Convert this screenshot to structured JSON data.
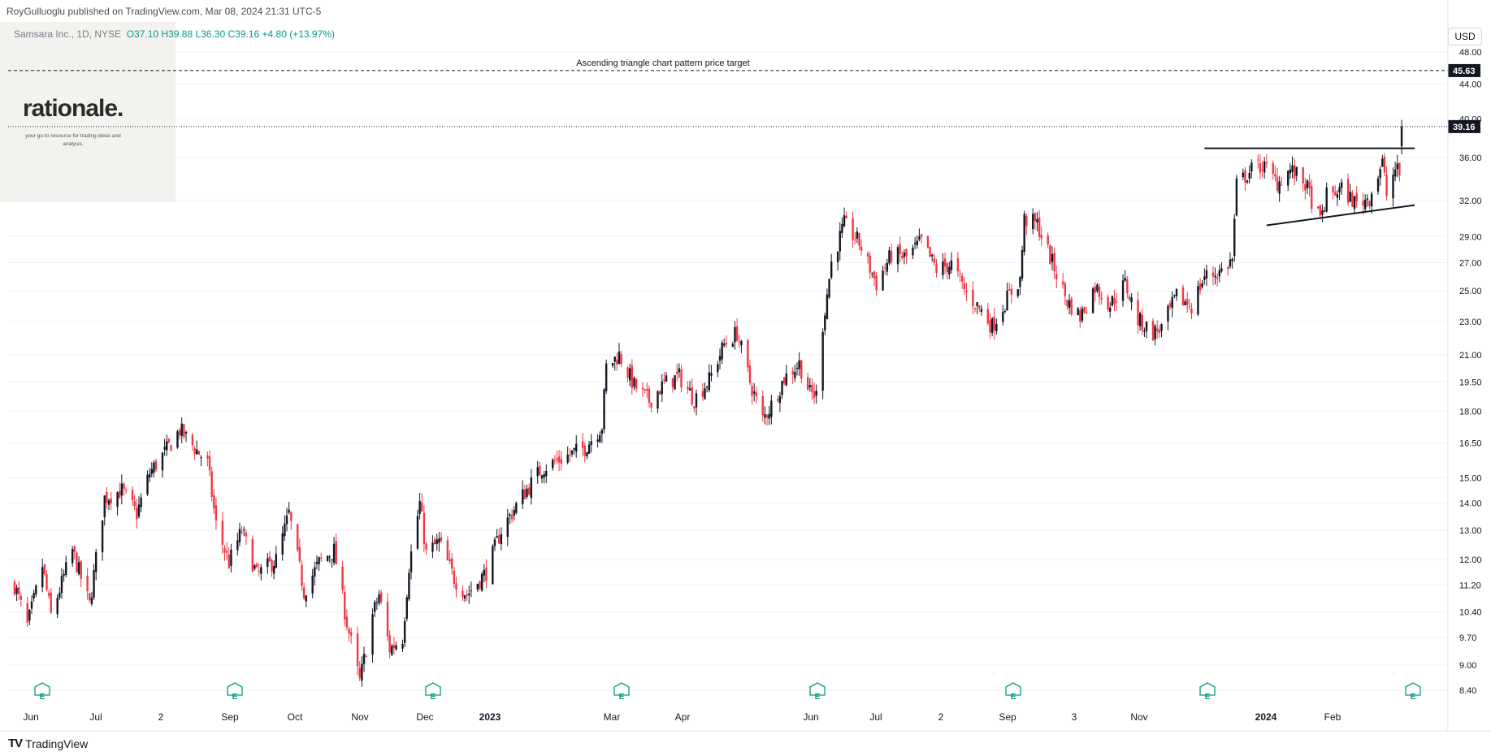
{
  "header": {
    "publisher": "RoyGulluoglu published on TradingView.com, Mar 08, 2024 21:31 UTC-5",
    "symbol": "Samsara Inc., 1D, NYSE",
    "ohlc": "O37.10 H39.88 L36.30 C39.16 +4.80 (+13.97%)"
  },
  "branding": {
    "logo": "rationale.",
    "tagline": "your go-to resource for trading ideas and analysis."
  },
  "price_scale": {
    "currency": "USD"
  },
  "footer": {
    "brand": "TradingView",
    "logo_mark": "TV"
  },
  "colors": {
    "up": "#131722",
    "down": "#f23645",
    "target_label": "#131722",
    "grid": "#f0f3fa"
  },
  "chart_data": {
    "type": "candlestick",
    "symbol": "Samsara Inc., 1D, NYSE",
    "y_scale": "log",
    "y_ticks": [
      8.4,
      9.0,
      9.7,
      10.4,
      11.2,
      12.0,
      13.0,
      14.0,
      15.0,
      16.5,
      18.0,
      19.5,
      21.0,
      23.0,
      25.0,
      27.0,
      29.0,
      32.0,
      36.0,
      40.0,
      44.0,
      48.0
    ],
    "y_tick_labels": [
      "8.40",
      "9.00",
      "9.70",
      "10.40",
      "11.20",
      "12.00",
      "13.00",
      "14.00",
      "15.00",
      "16.50",
      "18.00",
      "19.50",
      "21.00",
      "23.00",
      "25.00",
      "27.00",
      "29.00",
      "32.00",
      "36.00",
      "40.00",
      "44.00",
      "48.00"
    ],
    "ylim": [
      8.0,
      52.0
    ],
    "x_labels": [
      "Jun",
      "Jul",
      "2",
      "Sep",
      "Oct",
      "Nov",
      "Dec",
      "2023",
      "Mar",
      "Apr",
      "Jun",
      "Jul",
      "2",
      "Sep",
      "3",
      "Nov",
      "2024",
      "Feb"
    ],
    "last_price": 39.16,
    "last_price_label": "39.16",
    "price_target": 45.63,
    "price_target_label": "45.63",
    "annotation": "Ascending triangle chart pattern price target",
    "resistance_line": {
      "from_date": "2023-12-07",
      "to_date": "2024-03-08",
      "price": 36.9
    },
    "support_line": {
      "from_date": "2024-01-05",
      "from_price": 29.9,
      "to_date": "2024-03-08",
      "to_price": 31.6
    },
    "earnings_markers": {
      "label": "E",
      "count": 8
    },
    "price_path": [
      [
        "2022-05-31",
        11.2
      ],
      [
        "2022-06-06",
        10.0
      ],
      [
        "2022-06-13",
        11.8
      ],
      [
        "2022-06-17",
        10.3
      ],
      [
        "2022-06-27",
        12.3
      ],
      [
        "2022-07-05",
        10.6
      ],
      [
        "2022-07-12",
        14.2
      ],
      [
        "2022-07-20",
        14.5
      ],
      [
        "2022-07-27",
        13.6
      ],
      [
        "2022-08-02",
        15.2
      ],
      [
        "2022-08-10",
        16.2
      ],
      [
        "2022-08-16",
        17.1
      ],
      [
        "2022-08-22",
        16.4
      ],
      [
        "2022-08-29",
        15.6
      ],
      [
        "2022-09-02",
        13.2
      ],
      [
        "2022-09-08",
        11.9
      ],
      [
        "2022-09-14",
        13.0
      ],
      [
        "2022-09-21",
        11.5
      ],
      [
        "2022-09-30",
        12.0
      ],
      [
        "2022-10-06",
        13.6
      ],
      [
        "2022-10-13",
        11.0
      ],
      [
        "2022-10-20",
        11.9
      ],
      [
        "2022-10-27",
        12.3
      ],
      [
        "2022-11-02",
        10.1
      ],
      [
        "2022-11-08",
        8.6
      ],
      [
        "2022-11-14",
        10.3
      ],
      [
        "2022-11-17",
        10.9
      ],
      [
        "2022-11-22",
        9.4
      ],
      [
        "2022-11-28",
        9.7
      ],
      [
        "2022-12-01",
        11.8
      ],
      [
        "2022-12-06",
        14.0
      ],
      [
        "2022-12-09",
        12.2
      ],
      [
        "2022-12-15",
        12.6
      ],
      [
        "2022-12-22",
        11.4
      ],
      [
        "2022-12-28",
        10.9
      ],
      [
        "2023-01-06",
        11.6
      ],
      [
        "2023-01-13",
        13.0
      ],
      [
        "2023-01-23",
        14.3
      ],
      [
        "2023-02-01",
        15.4
      ],
      [
        "2023-02-10",
        15.8
      ],
      [
        "2023-02-21",
        16.3
      ],
      [
        "2023-03-01",
        17.3
      ],
      [
        "2023-03-03",
        20.3
      ],
      [
        "2023-03-09",
        21.0
      ],
      [
        "2023-03-16",
        19.3
      ],
      [
        "2023-03-23",
        18.5
      ],
      [
        "2023-03-30",
        19.4
      ],
      [
        "2023-04-06",
        19.8
      ],
      [
        "2023-04-13",
        18.6
      ],
      [
        "2023-04-20",
        19.6
      ],
      [
        "2023-04-27",
        21.6
      ],
      [
        "2023-05-03",
        22.3
      ],
      [
        "2023-05-09",
        19.5
      ],
      [
        "2023-05-15",
        17.6
      ],
      [
        "2023-05-19",
        18.3
      ],
      [
        "2023-05-25",
        19.7
      ],
      [
        "2023-06-01",
        20.5
      ],
      [
        "2023-06-06",
        18.9
      ],
      [
        "2023-06-09",
        18.8
      ],
      [
        "2023-06-12",
        22.8
      ],
      [
        "2023-06-16",
        27.0
      ],
      [
        "2023-06-22",
        30.0
      ],
      [
        "2023-06-29",
        28.5
      ],
      [
        "2023-07-07",
        25.5
      ],
      [
        "2023-07-14",
        27.6
      ],
      [
        "2023-07-21",
        27.4
      ],
      [
        "2023-07-28",
        28.6
      ],
      [
        "2023-08-04",
        26.5
      ],
      [
        "2023-08-11",
        26.9
      ],
      [
        "2023-08-18",
        24.8
      ],
      [
        "2023-08-25",
        23.7
      ],
      [
        "2023-08-30",
        22.7
      ],
      [
        "2023-09-06",
        24.5
      ],
      [
        "2023-09-12",
        25.8
      ],
      [
        "2023-09-14",
        30.4
      ],
      [
        "2023-09-20",
        30.0
      ],
      [
        "2023-09-27",
        27.0
      ],
      [
        "2023-10-04",
        24.3
      ],
      [
        "2023-10-10",
        23.3
      ],
      [
        "2023-10-17",
        25.3
      ],
      [
        "2023-10-24",
        24.1
      ],
      [
        "2023-10-31",
        25.5
      ],
      [
        "2023-11-06",
        23.1
      ],
      [
        "2023-11-13",
        22.3
      ],
      [
        "2023-11-17",
        22.6
      ],
      [
        "2023-11-24",
        24.6
      ],
      [
        "2023-12-01",
        24.0
      ],
      [
        "2023-12-07",
        26.0
      ],
      [
        "2023-12-14",
        26.3
      ],
      [
        "2023-12-20",
        27.2
      ],
      [
        "2023-12-22",
        33.4
      ],
      [
        "2023-12-29",
        34.8
      ],
      [
        "2024-01-03",
        35.3
      ],
      [
        "2024-01-10",
        33.6
      ],
      [
        "2024-01-16",
        34.8
      ],
      [
        "2024-01-23",
        33.5
      ],
      [
        "2024-01-30",
        30.2
      ],
      [
        "2024-02-02",
        32.4
      ],
      [
        "2024-02-09",
        33.0
      ],
      [
        "2024-02-16",
        31.7
      ],
      [
        "2024-02-22",
        32.3
      ],
      [
        "2024-02-28",
        35.5
      ],
      [
        "2024-03-01",
        32.5
      ],
      [
        "2024-03-05",
        34.9
      ],
      [
        "2024-03-07",
        34.36
      ],
      [
        "2024-03-08",
        39.16
      ]
    ]
  }
}
